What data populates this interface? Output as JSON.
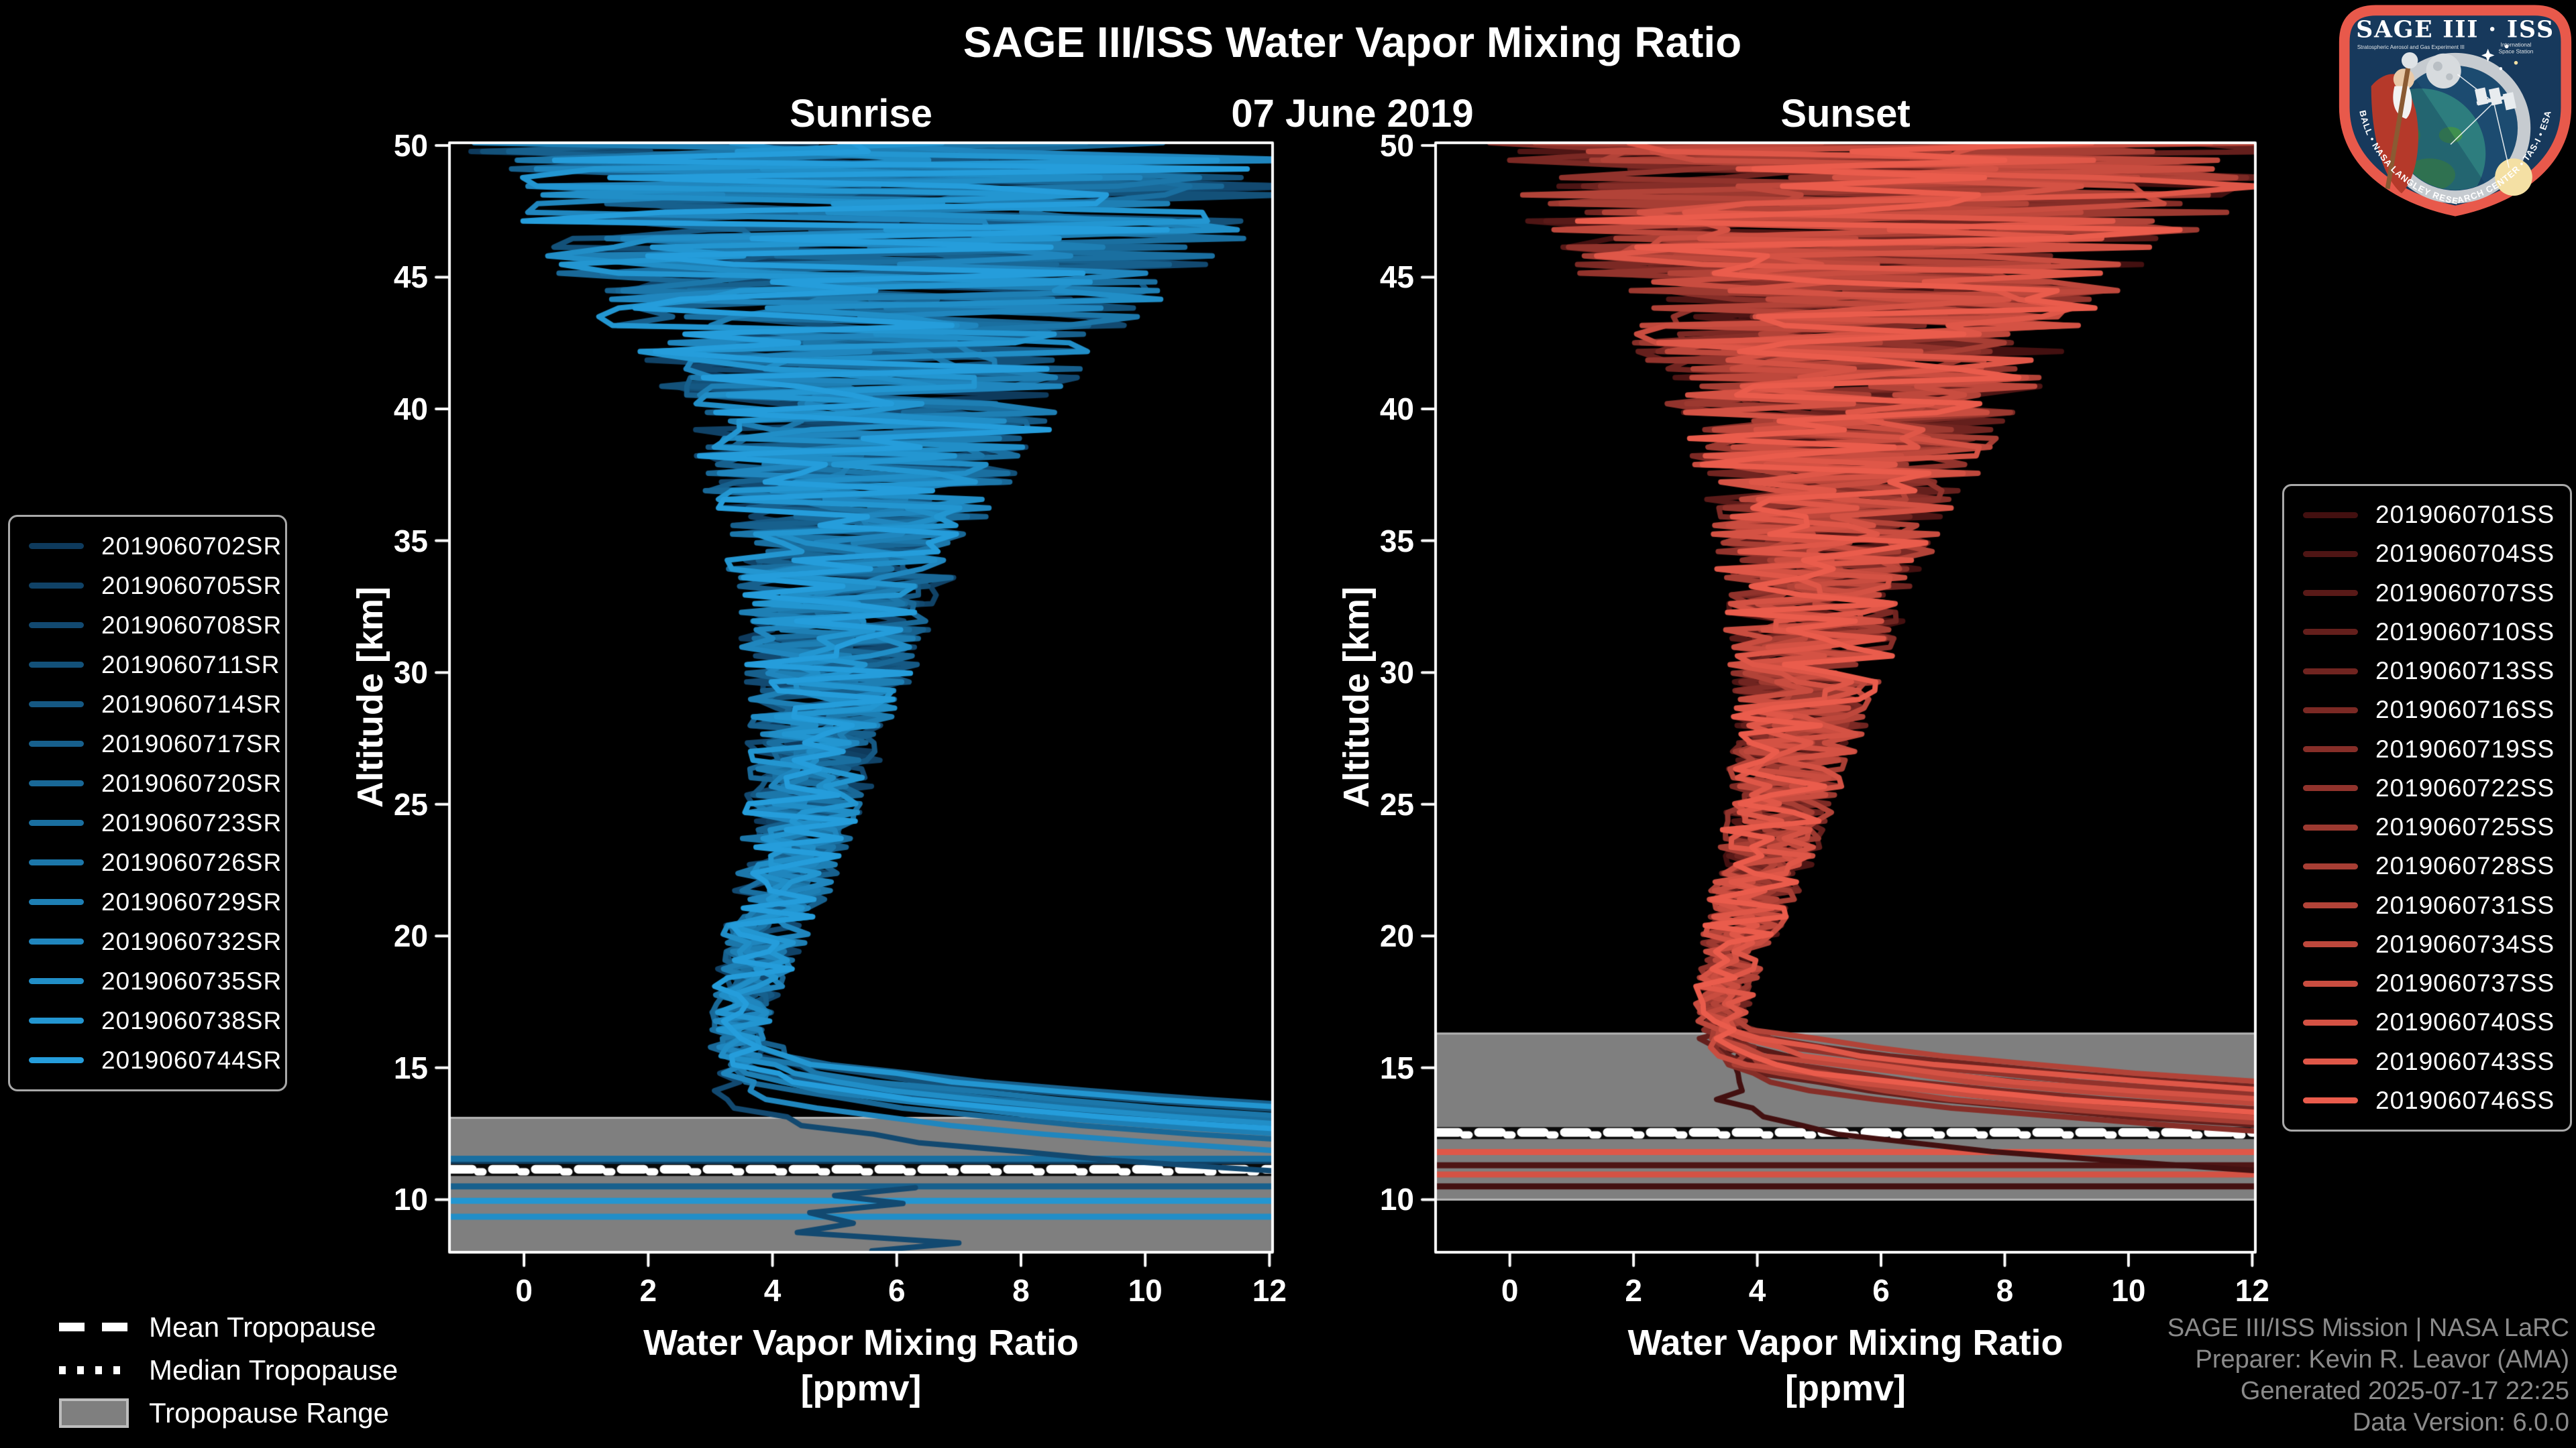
{
  "header": {
    "title": "SAGE III/ISS Water Vapor Mixing Ratio",
    "date": "07 June 2019"
  },
  "logo": {
    "title": "SAGE III · ISS",
    "subtitle_left": "Stratospheric Aerosol and Gas Experiment III",
    "subtitle_right_line1": "International",
    "subtitle_right_line2": "Space Station",
    "bottom_text": "BALL • NASA LANGLEY RESEARCH CENTER • TAS-I • ESA"
  },
  "attribution": {
    "line1": "SAGE III/ISS Mission | NASA LaRC",
    "line2": "Preparer: Kevin R. Leavor (AMA)",
    "line3": "Generated 2025-07-17 22:25",
    "line4": "Data Version: 6.0.0"
  },
  "tropopause_legend": {
    "mean_label": "Mean Tropopause",
    "median_label": "Median Tropopause",
    "range_label": "Tropopause Range"
  },
  "chart_data": {
    "type": "line",
    "title": "SAGE III/ISS Water Vapor Mixing Ratio",
    "subtitle": "07 June 2019",
    "xlabel_line1": "Water Vapor Mixing Ratio",
    "xlabel_line2": "[ppmv]",
    "ylabel": "Altitude [km]",
    "xlim": [
      -1.2,
      12.05
    ],
    "ylim": [
      8.0,
      50.1
    ],
    "xticks": [
      0,
      2,
      4,
      6,
      8,
      10,
      12
    ],
    "yticks": [
      10,
      15,
      20,
      25,
      30,
      35,
      40,
      45,
      50
    ],
    "grid": false,
    "background": "#000000",
    "tropopause_range_color": "#7f7f7f",
    "tropopause_range_edge_color": "#b5b5b5",
    "profile_envelope": {
      "alt_km": [
        50,
        48,
        46,
        45,
        44,
        42,
        40,
        38,
        36,
        34,
        32,
        30,
        28,
        26,
        24,
        22,
        20,
        18,
        17,
        16,
        15,
        14
      ],
      "center_ppmv": [
        6.0,
        6.0,
        5.8,
        5.7,
        5.6,
        5.5,
        5.5,
        5.4,
        5.3,
        5.1,
        5.0,
        4.9,
        4.8,
        4.6,
        4.4,
        4.2,
        3.9,
        3.6,
        3.5,
        3.45,
        3.4,
        3.4
      ],
      "spread_ppmv": [
        7.0,
        6.6,
        5.8,
        5.2,
        4.6,
        3.8,
        3.2,
        2.7,
        2.2,
        1.9,
        1.6,
        1.4,
        1.2,
        1.05,
        0.9,
        0.8,
        0.7,
        0.55,
        0.5,
        0.45,
        0.4,
        0.4
      ]
    },
    "panels": [
      {
        "id": "sunrise",
        "title": "Sunrise",
        "env_shift_km": 0,
        "tropopause": {
          "mean_km": 11.15,
          "median_km": 11.05,
          "range_top_km": 13.1,
          "range_bottom_km": 8.0
        },
        "series": [
          {
            "name": "2019060702SR",
            "color": "#0e3a5c",
            "exit_alt_km": 12.9,
            "neck_ppmv": 3.4
          },
          {
            "name": "2019060705SR",
            "color": "#104266",
            "exit_alt_km": 12.4,
            "neck_ppmv": 3.2
          },
          {
            "name": "2019060708SR",
            "color": "#124970",
            "exit_alt_km": 10.9,
            "neck_ppmv": 3.5
          },
          {
            "name": "2019060711SR",
            "color": "#135179",
            "exit_alt_km": 13.2,
            "neck_ppmv": 3.3
          },
          {
            "name": "2019060714SR",
            "color": "#155883",
            "exit_alt_km": 12.6,
            "neck_ppmv": 3.6
          },
          {
            "name": "2019060717SR",
            "color": "#17608d",
            "exit_alt_km": 13.4,
            "neck_ppmv": 3.1
          },
          {
            "name": "2019060720SR",
            "color": "#196897",
            "exit_alt_km": 12.1,
            "neck_ppmv": 3.4
          },
          {
            "name": "2019060723SR",
            "color": "#1a6fa0",
            "exit_alt_km": 12.8,
            "neck_ppmv": 3.2
          },
          {
            "name": "2019060726SR",
            "color": "#1c77aa",
            "exit_alt_km": 13.0,
            "neck_ppmv": 3.5
          },
          {
            "name": "2019060729SR",
            "color": "#1e7fb4",
            "exit_alt_km": 12.3,
            "neck_ppmv": 3.3
          },
          {
            "name": "2019060732SR",
            "color": "#2086be",
            "exit_alt_km": 11.6,
            "neck_ppmv": 3.0
          },
          {
            "name": "2019060735SR",
            "color": "#218ec7",
            "exit_alt_km": 12.7,
            "neck_ppmv": 3.6
          },
          {
            "name": "2019060738SR",
            "color": "#2396d1",
            "exit_alt_km": 13.3,
            "neck_ppmv": 3.2
          },
          {
            "name": "2019060744SR",
            "color": "#259ddb",
            "exit_alt_km": 12.5,
            "neck_ppmv": 3.4
          }
        ],
        "stripes": [
          {
            "alt_km": 11.55,
            "color": "#1a6fa0"
          },
          {
            "alt_km": 11.32,
            "color": "#104266"
          },
          {
            "alt_km": 10.5,
            "color": "#17608d"
          },
          {
            "alt_km": 9.95,
            "color": "#2396d1"
          },
          {
            "alt_km": 9.35,
            "color": "#218ec7"
          }
        ],
        "zigzag": {
          "color": "#124970",
          "points_ppmv_km": [
            [
              6.3,
              10.45
            ],
            [
              5.0,
              10.15
            ],
            [
              6.1,
              9.85
            ],
            [
              4.6,
              9.5
            ],
            [
              5.3,
              9.1
            ],
            [
              4.4,
              8.75
            ],
            [
              7.0,
              8.35
            ],
            [
              5.6,
              8.05
            ]
          ]
        }
      },
      {
        "id": "sunset",
        "title": "Sunset",
        "env_shift_km": 1.3,
        "tropopause": {
          "mean_km": 12.55,
          "median_km": 12.45,
          "range_top_km": 16.3,
          "range_bottom_km": 10.0
        },
        "series": [
          {
            "name": "2019060701SS",
            "color": "#431010",
            "exit_alt_km": 10.9,
            "neck_ppmv": 3.5
          },
          {
            "name": "2019060704SS",
            "color": "#4e1514",
            "exit_alt_km": 12.9,
            "neck_ppmv": 3.3
          },
          {
            "name": "2019060707SS",
            "color": "#591a18",
            "exit_alt_km": 13.6,
            "neck_ppmv": 3.6
          },
          {
            "name": "2019060710SS",
            "color": "#641f1c",
            "exit_alt_km": 12.6,
            "neck_ppmv": 3.2
          },
          {
            "name": "2019060713SS",
            "color": "#702420",
            "exit_alt_km": 14.1,
            "neck_ppmv": 3.4
          },
          {
            "name": "2019060716SS",
            "color": "#7b2924",
            "exit_alt_km": 13.2,
            "neck_ppmv": 3.1
          },
          {
            "name": "2019060719SS",
            "color": "#862e28",
            "exit_alt_km": 12.4,
            "neck_ppmv": 3.5
          },
          {
            "name": "2019060722SS",
            "color": "#91332c",
            "exit_alt_km": 13.8,
            "neck_ppmv": 3.3
          },
          {
            "name": "2019060725SS",
            "color": "#9c3930",
            "exit_alt_km": 13.0,
            "neck_ppmv": 3.6
          },
          {
            "name": "2019060728SS",
            "color": "#a73e34",
            "exit_alt_km": 12.7,
            "neck_ppmv": 3.2
          },
          {
            "name": "2019060731SS",
            "color": "#b24338",
            "exit_alt_km": 14.3,
            "neck_ppmv": 3.4
          },
          {
            "name": "2019060734SS",
            "color": "#be483c",
            "exit_alt_km": 13.4,
            "neck_ppmv": 3.0
          },
          {
            "name": "2019060737SS",
            "color": "#c94d40",
            "exit_alt_km": 12.9,
            "neck_ppmv": 3.5
          },
          {
            "name": "2019060740SS",
            "color": "#d45244",
            "exit_alt_km": 13.6,
            "neck_ppmv": 3.3
          },
          {
            "name": "2019060743SS",
            "color": "#df5748",
            "exit_alt_km": 14.0,
            "neck_ppmv": 3.6
          },
          {
            "name": "2019060746SS",
            "color": "#ea5c4c",
            "exit_alt_km": 13.1,
            "neck_ppmv": 3.4
          }
        ],
        "stripes": [
          {
            "alt_km": 11.8,
            "color": "#df5748"
          },
          {
            "alt_km": 11.3,
            "color": "#4e1514"
          },
          {
            "alt_km": 10.95,
            "color": "#d45244"
          },
          {
            "alt_km": 10.5,
            "color": "#431010"
          }
        ],
        "zigzag": null
      }
    ]
  }
}
